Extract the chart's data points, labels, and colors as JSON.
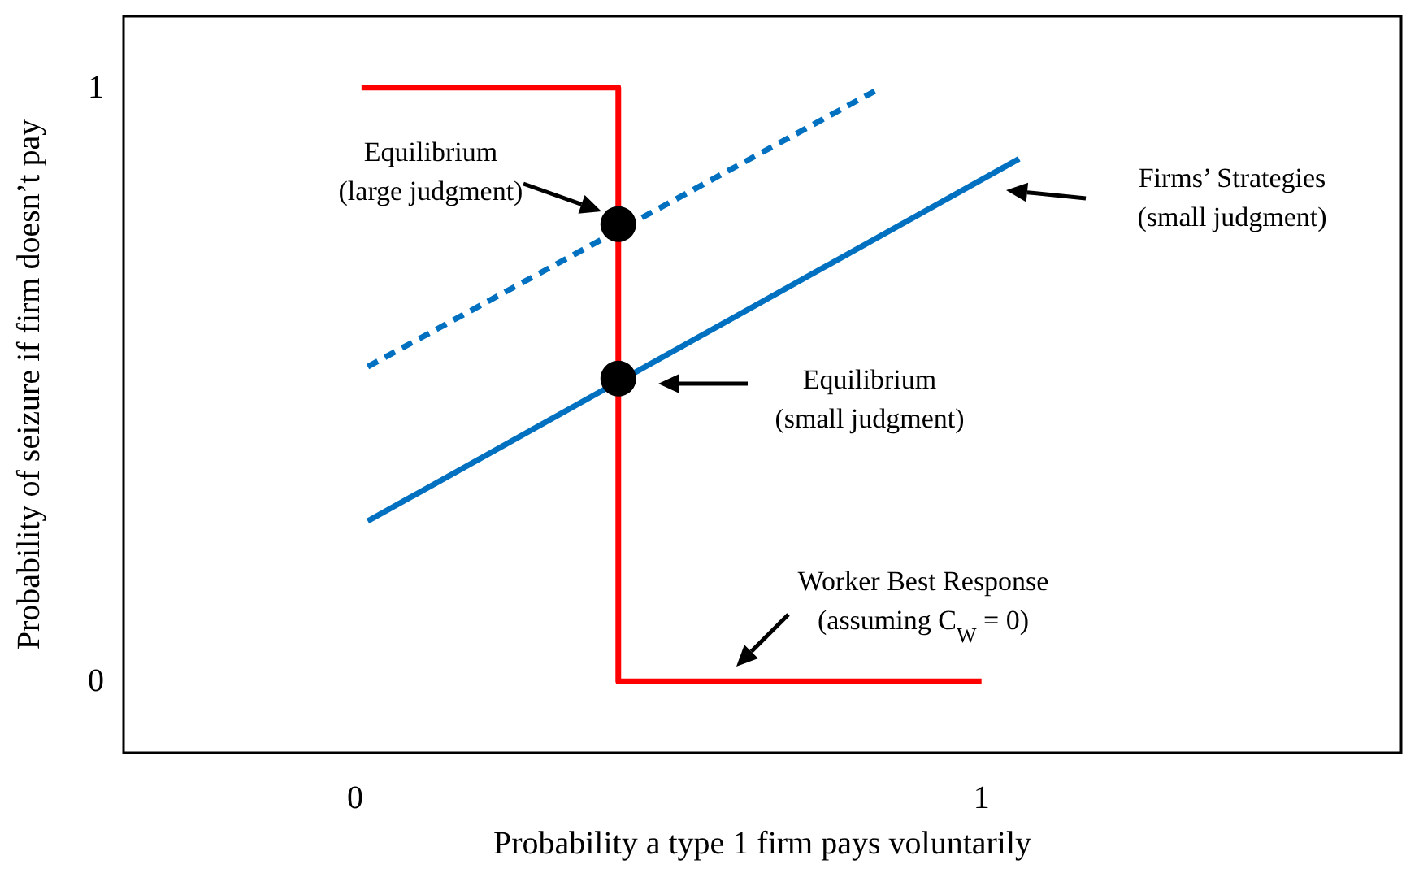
{
  "chart_data": {
    "type": "line",
    "xlabel": "Probability a type 1 firm pays voluntarily",
    "ylabel": "Probability of seizure if firm doesn’t pay",
    "xlim": [
      -0.37,
      1.67
    ],
    "ylim": [
      -0.12,
      1.12
    ],
    "xticks": [
      0,
      1
    ],
    "yticks": [
      0,
      1
    ],
    "grid": false,
    "series": [
      {
        "color": "#ff0000",
        "marker": "none",
        "line_style": "solid",
        "x": [
          0.01,
          0.42,
          0.42,
          1.0
        ],
        "values": [
          1,
          1,
          0,
          0
        ]
      },
      {
        "color": "#0070c0",
        "marker": "none",
        "line_style": "solid",
        "x": [
          0.02,
          1.06
        ],
        "values": [
          0.27,
          0.88
        ]
      },
      {
        "color": "#0070c0",
        "marker": "none",
        "line_style": "dashed",
        "x": [
          0.02,
          0.84
        ],
        "values": [
          0.53,
          1.0
        ]
      },
      {
        "type": "scatter",
        "color": "#000000",
        "marker": "circle",
        "x": [
          0.42,
          0.42
        ],
        "values": [
          0.77,
          0.51
        ]
      }
    ],
    "annotations": [
      "Equilibrium\n(large judgment)",
      "Equilibrium\n(small judgment)",
      "Firms’ Strategies\n(small judgment)",
      "Worker Best Response\n(assuming C$_{W}$ = 0)"
    ]
  }
}
